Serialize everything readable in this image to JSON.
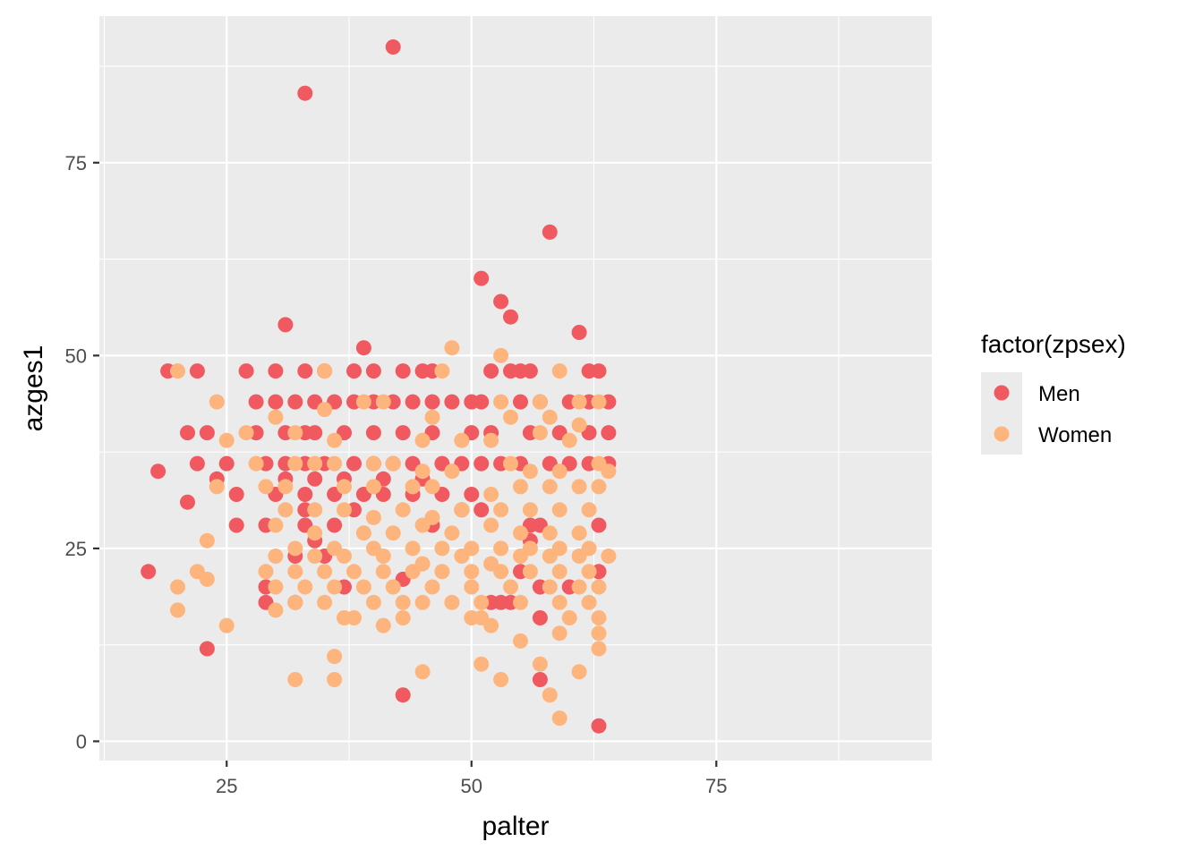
{
  "chart_data": {
    "type": "scatter",
    "xlabel": "palter",
    "ylabel": "azges1",
    "xlim": [
      12,
      97
    ],
    "ylim": [
      -2.5,
      94
    ],
    "x_ticks": [
      25,
      50,
      75
    ],
    "y_ticks": [
      0,
      25,
      50,
      75
    ],
    "grid": true,
    "legend": {
      "title": "factor(zpsex)",
      "position": "right"
    },
    "series": [
      {
        "name": "Men",
        "color": "#F0595F",
        "points": [
          [
            42,
            90
          ],
          [
            33,
            84
          ],
          [
            58,
            66
          ],
          [
            51,
            60
          ],
          [
            53,
            57
          ],
          [
            54,
            55
          ],
          [
            31,
            54
          ],
          [
            61,
            53
          ],
          [
            39,
            51
          ],
          [
            19,
            48
          ],
          [
            22,
            48
          ],
          [
            27,
            48
          ],
          [
            30,
            48
          ],
          [
            33,
            48
          ],
          [
            35,
            48
          ],
          [
            38,
            48
          ],
          [
            40,
            48
          ],
          [
            43,
            48
          ],
          [
            45,
            48
          ],
          [
            46,
            48
          ],
          [
            52,
            48
          ],
          [
            54,
            48
          ],
          [
            55,
            48
          ],
          [
            56,
            48
          ],
          [
            62,
            48
          ],
          [
            63,
            48
          ],
          [
            28,
            44
          ],
          [
            30,
            44
          ],
          [
            32,
            44
          ],
          [
            34,
            44
          ],
          [
            36,
            44
          ],
          [
            38,
            44
          ],
          [
            40,
            44
          ],
          [
            42,
            44
          ],
          [
            44,
            44
          ],
          [
            46,
            44
          ],
          [
            48,
            44
          ],
          [
            50,
            44
          ],
          [
            51,
            44
          ],
          [
            55,
            44
          ],
          [
            57,
            44
          ],
          [
            60,
            44
          ],
          [
            62,
            44
          ],
          [
            64,
            44
          ],
          [
            21,
            40
          ],
          [
            23,
            40
          ],
          [
            28,
            40
          ],
          [
            31,
            40
          ],
          [
            33,
            40
          ],
          [
            34,
            40
          ],
          [
            37,
            40
          ],
          [
            40,
            40
          ],
          [
            43,
            40
          ],
          [
            46,
            40
          ],
          [
            50,
            40
          ],
          [
            52,
            40
          ],
          [
            56,
            40
          ],
          [
            59,
            40
          ],
          [
            62,
            40
          ],
          [
            64,
            40
          ],
          [
            22,
            36
          ],
          [
            25,
            36
          ],
          [
            29,
            36
          ],
          [
            31,
            36
          ],
          [
            33,
            36
          ],
          [
            35,
            36
          ],
          [
            38,
            36
          ],
          [
            40,
            36
          ],
          [
            42,
            36
          ],
          [
            44,
            36
          ],
          [
            47,
            36
          ],
          [
            49,
            36
          ],
          [
            51,
            36
          ],
          [
            53,
            36
          ],
          [
            55,
            36
          ],
          [
            58,
            36
          ],
          [
            60,
            36
          ],
          [
            62,
            36
          ],
          [
            64,
            36
          ],
          [
            18,
            35
          ],
          [
            24,
            34
          ],
          [
            31,
            34
          ],
          [
            34,
            34
          ],
          [
            37,
            34
          ],
          [
            41,
            34
          ],
          [
            45,
            34
          ],
          [
            26,
            32
          ],
          [
            30,
            32
          ],
          [
            33,
            32
          ],
          [
            36,
            32
          ],
          [
            39,
            32
          ],
          [
            41,
            32
          ],
          [
            44,
            32
          ],
          [
            47,
            32
          ],
          [
            50,
            32
          ],
          [
            21,
            31
          ],
          [
            33,
            30
          ],
          [
            38,
            30
          ],
          [
            49,
            30
          ],
          [
            51,
            30
          ],
          [
            57,
            28
          ],
          [
            26,
            28
          ],
          [
            29,
            28
          ],
          [
            33,
            28
          ],
          [
            36,
            28
          ],
          [
            46,
            28
          ],
          [
            56,
            28
          ],
          [
            63,
            28
          ],
          [
            34,
            26
          ],
          [
            56,
            26
          ],
          [
            32,
            24
          ],
          [
            35,
            24
          ],
          [
            17,
            22
          ],
          [
            55,
            22
          ],
          [
            63,
            22
          ],
          [
            43,
            21
          ],
          [
            29,
            20
          ],
          [
            37,
            20
          ],
          [
            57,
            20
          ],
          [
            60,
            20
          ],
          [
            29,
            18
          ],
          [
            32,
            18
          ],
          [
            52,
            18
          ],
          [
            53,
            18
          ],
          [
            54,
            18
          ],
          [
            57,
            16
          ],
          [
            23,
            12
          ],
          [
            57,
            8
          ],
          [
            43,
            6
          ],
          [
            63,
            2
          ]
        ]
      },
      {
        "name": "Women",
        "color": "#FDB57D",
        "points": [
          [
            20,
            48
          ],
          [
            35,
            48
          ],
          [
            48,
            51
          ],
          [
            53,
            50
          ],
          [
            59,
            48
          ],
          [
            47,
            48
          ],
          [
            24,
            44
          ],
          [
            39,
            44
          ],
          [
            41,
            44
          ],
          [
            53,
            44
          ],
          [
            57,
            44
          ],
          [
            61,
            44
          ],
          [
            63,
            44
          ],
          [
            30,
            42
          ],
          [
            35,
            43
          ],
          [
            46,
            42
          ],
          [
            54,
            42
          ],
          [
            58,
            42
          ],
          [
            61,
            41
          ],
          [
            25,
            39
          ],
          [
            27,
            40
          ],
          [
            32,
            40
          ],
          [
            36,
            39
          ],
          [
            45,
            39
          ],
          [
            49,
            39
          ],
          [
            52,
            39
          ],
          [
            57,
            40
          ],
          [
            60,
            39
          ],
          [
            28,
            36
          ],
          [
            32,
            36
          ],
          [
            34,
            36
          ],
          [
            36,
            36
          ],
          [
            40,
            36
          ],
          [
            42,
            36
          ],
          [
            45,
            35
          ],
          [
            48,
            35
          ],
          [
            54,
            36
          ],
          [
            56,
            35
          ],
          [
            59,
            35
          ],
          [
            63,
            36
          ],
          [
            64,
            35
          ],
          [
            24,
            33
          ],
          [
            29,
            33
          ],
          [
            31,
            33
          ],
          [
            37,
            33
          ],
          [
            40,
            33
          ],
          [
            44,
            33
          ],
          [
            46,
            33
          ],
          [
            52,
            32
          ],
          [
            55,
            33
          ],
          [
            58,
            33
          ],
          [
            61,
            33
          ],
          [
            63,
            33
          ],
          [
            31,
            30
          ],
          [
            34,
            30
          ],
          [
            37,
            30
          ],
          [
            40,
            29
          ],
          [
            43,
            30
          ],
          [
            46,
            29
          ],
          [
            49,
            30
          ],
          [
            53,
            30
          ],
          [
            56,
            30
          ],
          [
            59,
            30
          ],
          [
            62,
            30
          ],
          [
            30,
            28
          ],
          [
            34,
            27
          ],
          [
            39,
            27
          ],
          [
            42,
            27
          ],
          [
            45,
            28
          ],
          [
            48,
            27
          ],
          [
            52,
            28
          ],
          [
            55,
            27
          ],
          [
            58,
            27
          ],
          [
            61,
            27
          ],
          [
            23,
            26
          ],
          [
            32,
            25
          ],
          [
            36,
            25
          ],
          [
            40,
            25
          ],
          [
            44,
            25
          ],
          [
            47,
            25
          ],
          [
            50,
            25
          ],
          [
            53,
            25
          ],
          [
            56,
            25
          ],
          [
            59,
            25
          ],
          [
            62,
            25
          ],
          [
            30,
            24
          ],
          [
            34,
            24
          ],
          [
            37,
            24
          ],
          [
            41,
            24
          ],
          [
            45,
            23
          ],
          [
            49,
            24
          ],
          [
            52,
            23
          ],
          [
            55,
            24
          ],
          [
            58,
            24
          ],
          [
            61,
            24
          ],
          [
            64,
            24
          ],
          [
            22,
            22
          ],
          [
            29,
            22
          ],
          [
            32,
            22
          ],
          [
            35,
            22
          ],
          [
            38,
            22
          ],
          [
            41,
            22
          ],
          [
            44,
            22
          ],
          [
            47,
            22
          ],
          [
            50,
            22
          ],
          [
            53,
            22
          ],
          [
            56,
            22
          ],
          [
            59,
            22
          ],
          [
            62,
            22
          ],
          [
            23,
            21
          ],
          [
            30,
            20
          ],
          [
            33,
            20
          ],
          [
            36,
            20
          ],
          [
            39,
            20
          ],
          [
            42,
            20
          ],
          [
            46,
            20
          ],
          [
            50,
            20
          ],
          [
            54,
            20
          ],
          [
            58,
            20
          ],
          [
            61,
            20
          ],
          [
            63,
            20
          ],
          [
            20,
            20
          ],
          [
            32,
            18
          ],
          [
            35,
            18
          ],
          [
            40,
            18
          ],
          [
            43,
            18
          ],
          [
            45,
            18
          ],
          [
            48,
            18
          ],
          [
            51,
            18
          ],
          [
            55,
            18
          ],
          [
            59,
            18
          ],
          [
            62,
            18
          ],
          [
            20,
            17
          ],
          [
            30,
            17
          ],
          [
            37,
            16
          ],
          [
            38,
            16
          ],
          [
            41,
            15
          ],
          [
            43,
            16
          ],
          [
            50,
            16
          ],
          [
            51,
            16
          ],
          [
            52,
            15
          ],
          [
            60,
            16
          ],
          [
            63,
            16
          ],
          [
            25,
            15
          ],
          [
            55,
            13
          ],
          [
            59,
            14
          ],
          [
            63,
            14
          ],
          [
            63,
            12
          ],
          [
            36,
            11
          ],
          [
            45,
            9
          ],
          [
            51,
            10
          ],
          [
            57,
            10
          ],
          [
            61,
            9
          ],
          [
            32,
            8
          ],
          [
            36,
            8
          ],
          [
            53,
            8
          ],
          [
            58,
            6
          ],
          [
            59,
            3
          ]
        ]
      }
    ]
  }
}
